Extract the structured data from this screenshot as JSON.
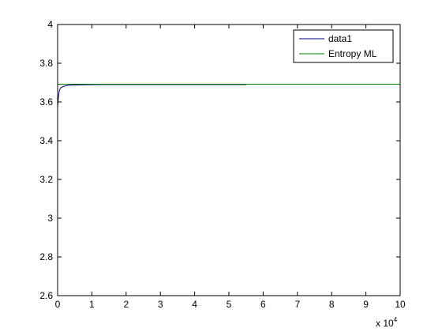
{
  "chart_data": {
    "type": "line",
    "title": "",
    "xlabel": "",
    "ylabel": "",
    "xlim": [
      0,
      100000
    ],
    "ylim": [
      2.6,
      4.0
    ],
    "x_tick_values": [
      0,
      10000,
      20000,
      30000,
      40000,
      50000,
      60000,
      70000,
      80000,
      90000,
      100000
    ],
    "x_tick_labels": [
      "0",
      "1",
      "2",
      "3",
      "4",
      "5",
      "6",
      "7",
      "8",
      "9",
      "10"
    ],
    "x_multiplier": {
      "base": "x 10",
      "exponent": "4"
    },
    "y_tick_values": [
      2.6,
      2.8,
      3.0,
      3.2,
      3.4,
      3.6,
      3.8,
      4.0
    ],
    "y_tick_labels": [
      "2.6",
      "2.8",
      "3",
      "3.2",
      "3.4",
      "3.6",
      "3.8",
      "4"
    ],
    "grid": false,
    "legend_position": "top-right",
    "series": [
      {
        "name": "data1",
        "color": "#000080",
        "x": [
          0,
          200,
          500,
          1000,
          2000,
          3000,
          5000,
          8000,
          15000,
          30000,
          45000,
          55000
        ],
        "y": [
          3.57,
          3.62,
          3.66,
          3.675,
          3.682,
          3.686,
          3.688,
          3.689,
          3.69,
          3.69,
          3.69,
          3.69
        ]
      },
      {
        "name": "Entropy ML",
        "color": "#008000",
        "x": [
          0,
          100000
        ],
        "y": [
          3.692,
          3.692
        ]
      }
    ]
  }
}
